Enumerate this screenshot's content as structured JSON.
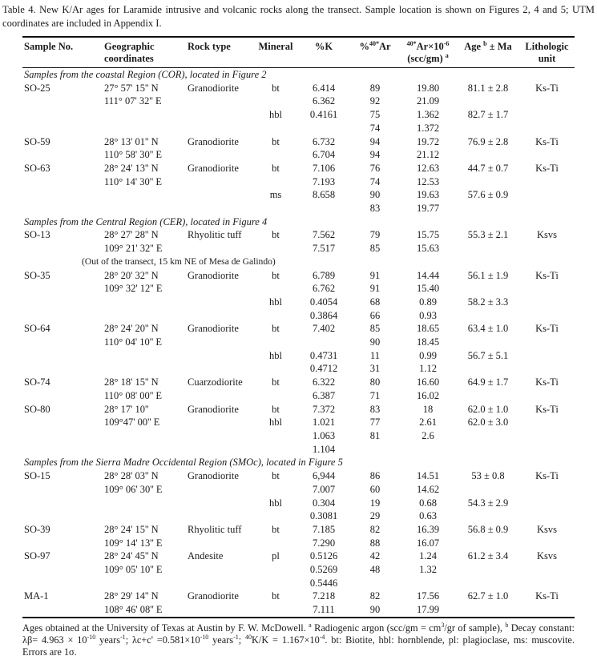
{
  "caption": "Table 4. New K/Ar ages for Laramide intrusive and volcanic rocks along the transect. Sample location is shown on Figures 2, 4 and 5; UTM coordinates are included in Appendix I.",
  "table": {
    "headers": [
      {
        "name": "sample-no",
        "align": "left",
        "segments": [
          {
            "t": "Sample No."
          }
        ]
      },
      {
        "name": "geographic-coordinates",
        "align": "left",
        "segments": [
          {
            "t": "Geographic coordinates"
          }
        ]
      },
      {
        "name": "rock-type",
        "align": "left",
        "segments": [
          {
            "t": "Rock type"
          }
        ]
      },
      {
        "name": "mineral",
        "align": "center",
        "segments": [
          {
            "t": "Mineral"
          }
        ]
      },
      {
        "name": "percent-k",
        "align": "center",
        "segments": [
          {
            "t": "%K"
          }
        ]
      },
      {
        "name": "percent-ar40",
        "align": "center",
        "segments": [
          {
            "t": "%"
          },
          {
            "t": "40*",
            "sup": true
          },
          {
            "t": "Ar"
          }
        ]
      },
      {
        "name": "ar40-concentration",
        "align": "center",
        "segments": [
          {
            "t": "40*",
            "sup": true
          },
          {
            "t": "Ar×10"
          },
          {
            "t": "-6",
            "sup": true
          },
          {
            "br": true
          },
          {
            "t": "(scc/gm) "
          },
          {
            "t": "a",
            "sup": true
          }
        ]
      },
      {
        "name": "age",
        "align": "center",
        "segments": [
          {
            "t": "Age "
          },
          {
            "t": "b",
            "sup": true
          },
          {
            "t": " ± Ma"
          }
        ]
      },
      {
        "name": "lithologic-unit",
        "align": "center",
        "segments": [
          {
            "t": "Lithologic unit"
          }
        ]
      }
    ],
    "sections": [
      {
        "label": "Samples from the coastal Region (COR), located in Figure 2",
        "rows": [
          {
            "cells": [
              "SO-25",
              "27° 57' 15'' N",
              "Granodiorite",
              "bt",
              "6.414",
              "89",
              "19.80",
              "81.1 ± 2.8",
              "Ks-Ti"
            ]
          },
          {
            "cells": [
              "",
              "111° 07' 32'' E",
              "",
              "",
              "6.362",
              "92",
              "21.09",
              "",
              ""
            ]
          },
          {
            "cells": [
              "",
              "",
              "",
              "hbl",
              "0.4161",
              "75",
              "1.362",
              "82.7 ± 1.7",
              ""
            ]
          },
          {
            "cells": [
              "",
              "",
              "",
              "",
              "",
              "74",
              "1.372",
              "",
              ""
            ]
          },
          {
            "cells": [
              "SO-59",
              "28° 13' 01'' N",
              "Granodiorite",
              "bt",
              "6.732",
              "94",
              "19.72",
              "76.9 ± 2.8",
              "Ks-Ti"
            ]
          },
          {
            "cells": [
              "",
              "110° 58' 30'' E",
              "",
              "",
              "6.704",
              "94",
              "21.12",
              "",
              ""
            ]
          },
          {
            "cells": [
              "SO-63",
              "28° 24' 13'' N",
              "Granodiorite",
              "bt",
              "7.106",
              "76",
              "12.63",
              "44.7 ± 0.7",
              "Ks-Ti"
            ]
          },
          {
            "cells": [
              "",
              "110° 14' 30'' E",
              "",
              "",
              "7.193",
              "74",
              "12.53",
              "",
              ""
            ]
          },
          {
            "cells": [
              "",
              "",
              "",
              "ms",
              "8.658",
              "90",
              "19.63",
              "57.6 ± 0.9",
              ""
            ]
          },
          {
            "cells": [
              "",
              "",
              "",
              "",
              "",
              "83",
              "19.77",
              "",
              ""
            ]
          }
        ]
      },
      {
        "label": "Samples from the Central Region (CER), located in Figure 4",
        "rows": [
          {
            "cells": [
              "SO-13",
              "28° 27' 28'' N",
              "Rhyolitic tuff",
              "bt",
              "7.562",
              "79",
              "15.75",
              "55.3 ± 2.1",
              "Ksvs"
            ]
          },
          {
            "cells": [
              "",
              "109° 21' 32'' E",
              "",
              "",
              "7.517",
              "85",
              "15.63",
              "",
              ""
            ]
          },
          {
            "note": "(Out of the transect, 15 km NE of Mesa de Galindo)"
          },
          {
            "cells": [
              "SO-35",
              "28° 20' 32'' N",
              "Granodiorite",
              "bt",
              "6.789",
              "91",
              "14.44",
              "56.1 ± 1.9",
              "Ks-Ti"
            ]
          },
          {
            "cells": [
              "",
              "109° 32' 12'' E",
              "",
              "",
              "6.762",
              "91",
              "15.40",
              "",
              ""
            ]
          },
          {
            "cells": [
              "",
              "",
              "",
              "hbl",
              "0.4054",
              "68",
              "0.89",
              "58.2 ± 3.3",
              ""
            ]
          },
          {
            "cells": [
              "",
              "",
              "",
              "",
              "0.3864",
              "66",
              "0.93",
              "",
              ""
            ]
          },
          {
            "cells": [
              "SO-64",
              "28° 24' 20'' N",
              "Granodiorite",
              "bt",
              "7.402",
              "85",
              "18.65",
              "63.4 ± 1.0",
              "Ks-Ti"
            ]
          },
          {
            "cells": [
              "",
              "110° 04' 10'' E",
              "",
              "",
              "",
              "90",
              "18.45",
              "",
              ""
            ]
          },
          {
            "cells": [
              "",
              "",
              "",
              "hbl",
              "0.4731",
              "11",
              "0.99",
              "56.7 ± 5.1",
              ""
            ]
          },
          {
            "cells": [
              "",
              "",
              "",
              "",
              "0.4712",
              "31",
              "1.12",
              "",
              ""
            ]
          },
          {
            "cells": [
              "SO-74",
              "28° 18' 15'' N",
              "Cuarzodiorite",
              "bt",
              "6.322",
              "80",
              "16.60",
              "64.9 ± 1.7",
              "Ks-Ti"
            ]
          },
          {
            "cells": [
              "",
              "110° 08' 00'' E",
              "",
              "",
              "6.387",
              "71",
              "16.02",
              "",
              ""
            ]
          },
          {
            "cells": [
              "SO-80",
              "28° 17' 10''",
              "Granodiorite",
              "bt",
              "7.372",
              "83",
              "18",
              "62.0 ± 1.0",
              "Ks-Ti"
            ]
          },
          {
            "cells": [
              "",
              "109°47' 00'' E",
              "",
              "hbl",
              "1.021",
              "77",
              "2.61",
              "62.0 ± 3.0",
              ""
            ]
          },
          {
            "cells": [
              "",
              "",
              "",
              "",
              "1.063",
              "81",
              "2.6",
              "",
              ""
            ]
          },
          {
            "cells": [
              "",
              "",
              "",
              "",
              "1.104",
              "",
              "",
              "",
              ""
            ]
          }
        ]
      },
      {
        "label": "Samples from the Sierra Madre Occidental Region (SMOc), located in Figure 5",
        "rows": [
          {
            "cells": [
              "SO-15",
              "28° 28' 03'' N",
              "Granodiorite",
              "bt",
              "6,944",
              "86",
              "14.51",
              "53 ± 0.8",
              "Ks-Ti"
            ]
          },
          {
            "cells": [
              "",
              "109° 06' 30'' E",
              "",
              "",
              "7.007",
              "60",
              "14.62",
              "",
              ""
            ]
          },
          {
            "cells": [
              "",
              "",
              "",
              "hbl",
              "0.304",
              "19",
              "0.68",
              "54.3 ± 2.9",
              ""
            ]
          },
          {
            "cells": [
              "",
              "",
              "",
              "",
              "0.3081",
              "29",
              "0.63",
              "",
              ""
            ]
          },
          {
            "cells": [
              "SO-39",
              "28° 24' 15'' N",
              "Rhyolitic tuff",
              "bt",
              "7.185",
              "82",
              "16.39",
              "56.8 ± 0.9",
              "Ksvs"
            ]
          },
          {
            "cells": [
              "",
              "109° 14' 13'' E",
              "",
              "",
              "7.290",
              "88",
              "16.07",
              "",
              ""
            ]
          },
          {
            "cells": [
              "SO-97",
              "28° 24' 45'' N",
              "Andesite",
              "pl",
              "0.5126",
              "42",
              "1.24",
              "61.2 ± 3.4",
              "Ksvs"
            ]
          },
          {
            "cells": [
              "",
              "109° 05' 10'' E",
              "",
              "",
              "0.5269",
              "48",
              "1.32",
              "",
              ""
            ]
          },
          {
            "cells": [
              "",
              "",
              "",
              "",
              "0.5446",
              "",
              "",
              "",
              ""
            ]
          },
          {
            "cells": [
              "MA-1",
              "28° 29' 14'' N",
              "Granodiorite",
              "bt",
              "7.218",
              "82",
              "17.56",
              "62.7 ± 1.0",
              "Ks-Ti"
            ]
          },
          {
            "cells": [
              "",
              "108° 46' 08'' E",
              "",
              "",
              "7.111",
              "90",
              "17.99",
              "",
              ""
            ]
          }
        ]
      }
    ]
  },
  "footnote_segments": [
    {
      "t": "Ages obtained at the University of Texas at Austin by F. W. McDowell. "
    },
    {
      "t": "a",
      "sup": true
    },
    {
      "t": " Radiogenic argon (scc/gm = cm"
    },
    {
      "t": "3",
      "sup": true
    },
    {
      "t": "/gr of sample), "
    },
    {
      "t": "b",
      "sup": true
    },
    {
      "t": " Decay constant: λβ= 4.963 × 10"
    },
    {
      "t": "-10",
      "sup": true
    },
    {
      "t": " years"
    },
    {
      "t": "-1",
      "sup": true
    },
    {
      "t": "; λc+c' =0.581×10"
    },
    {
      "t": "-10",
      "sup": true
    },
    {
      "t": " years"
    },
    {
      "t": "-1",
      "sup": true
    },
    {
      "t": "; "
    },
    {
      "t": "40",
      "sup": true
    },
    {
      "t": "K/K = 1.167×10"
    },
    {
      "t": "-4",
      "sup": true
    },
    {
      "t": ". bt: Biotite, hbl: hornblende, pl: plagioclase, ms: muscovite. Errors are 1σ."
    }
  ]
}
